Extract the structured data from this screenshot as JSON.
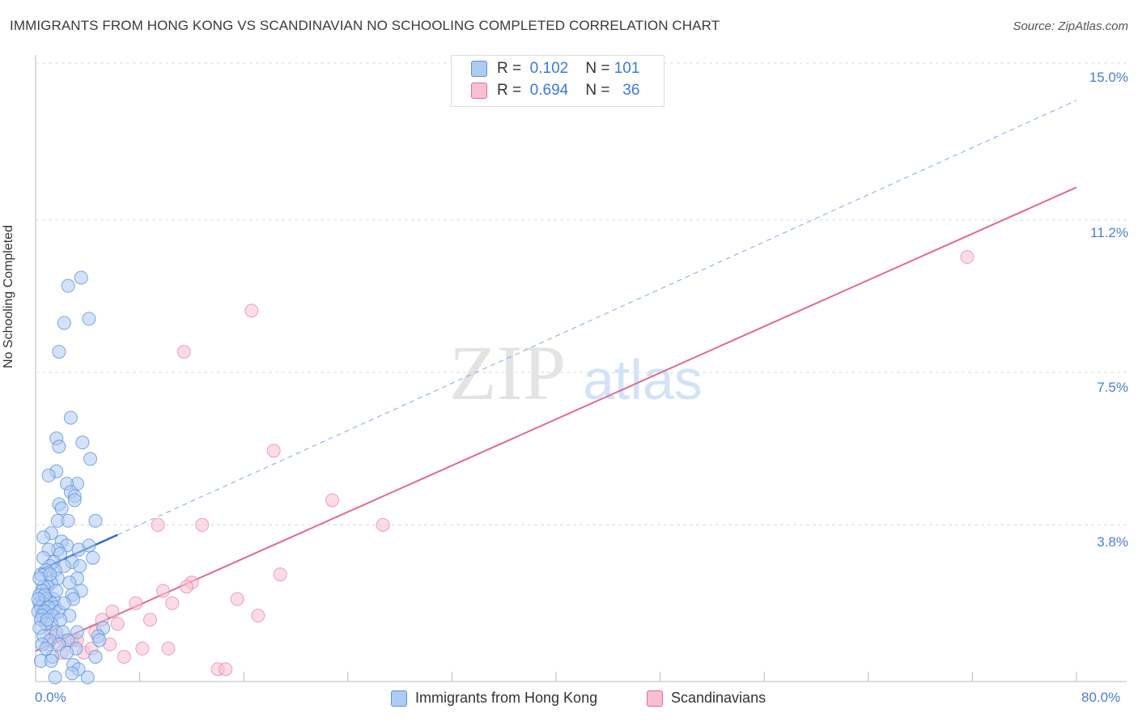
{
  "title": "IMMIGRANTS FROM HONG KONG VS SCANDINAVIAN NO SCHOOLING COMPLETED CORRELATION CHART",
  "source": "Source: ZipAtlas.com",
  "watermark": {
    "zip": "ZIP",
    "atlas": "atlas"
  },
  "legend": {
    "series1": {
      "r_label": "R =",
      "r_value": "0.102",
      "n_label": "N =",
      "n_value": "101"
    },
    "series2": {
      "r_label": "R =",
      "r_value": "0.694",
      "n_label": "N =",
      "n_value": "36"
    }
  },
  "bottom_legend": {
    "series1": "Immigrants from Hong Kong",
    "series2": "Scandinavians"
  },
  "colors": {
    "blue": "#5b93dc",
    "blue_fill": "#aecbf2",
    "pink": "#e26a92",
    "pink_fill": "#f7c0d2",
    "grid": "#dddddd",
    "tick": "#4a80d0"
  },
  "chart_data": {
    "type": "scatter",
    "title": "IMMIGRANTS FROM HONG KONG VS SCANDINAVIAN NO SCHOOLING COMPLETED CORRELATION CHART",
    "xlabel": "",
    "ylabel": "No Schooling Completed",
    "xlim": [
      0,
      80
    ],
    "ylim": [
      0,
      15.2
    ],
    "x_tick_labels": [
      "0.0%",
      "80.0%"
    ],
    "y_ticks": [
      3.8,
      7.5,
      11.2,
      15.0
    ],
    "y_tick_labels": [
      "3.8%",
      "7.5%",
      "11.2%",
      "15.0%"
    ],
    "grid": true,
    "legend_position": "top-center",
    "series": [
      {
        "name": "Immigrants from Hong Kong",
        "color": "#5b93dc",
        "R": 0.102,
        "N": 101,
        "trend_solid": [
          [
            0.2,
            2.69
          ],
          [
            6.3,
            3.56
          ]
        ],
        "trend_dashed": [
          [
            6.3,
            3.56
          ],
          [
            80.0,
            14.1
          ]
        ],
        "points": [
          [
            3.5,
            9.8
          ],
          [
            2.5,
            9.6
          ],
          [
            4.1,
            8.8
          ],
          [
            2.2,
            8.7
          ],
          [
            1.8,
            8.0
          ],
          [
            2.7,
            6.4
          ],
          [
            1.6,
            5.9
          ],
          [
            3.6,
            5.8
          ],
          [
            1.8,
            5.7
          ],
          [
            4.2,
            5.4
          ],
          [
            1.6,
            5.1
          ],
          [
            1.0,
            5.0
          ],
          [
            3.2,
            4.8
          ],
          [
            2.4,
            4.8
          ],
          [
            2.7,
            4.6
          ],
          [
            3.0,
            4.5
          ],
          [
            3.0,
            4.4
          ],
          [
            1.8,
            4.3
          ],
          [
            2.0,
            4.2
          ],
          [
            1.7,
            3.9
          ],
          [
            2.5,
            3.9
          ],
          [
            4.6,
            3.9
          ],
          [
            1.2,
            3.6
          ],
          [
            0.6,
            3.5
          ],
          [
            2.0,
            3.4
          ],
          [
            4.1,
            3.3
          ],
          [
            2.4,
            3.3
          ],
          [
            1.7,
            3.2
          ],
          [
            1.0,
            3.2
          ],
          [
            3.3,
            3.2
          ],
          [
            1.9,
            3.1
          ],
          [
            4.4,
            3.0
          ],
          [
            0.6,
            3.0
          ],
          [
            2.8,
            2.9
          ],
          [
            1.4,
            2.9
          ],
          [
            3.4,
            2.8
          ],
          [
            1.1,
            2.8
          ],
          [
            2.2,
            2.8
          ],
          [
            1.5,
            2.7
          ],
          [
            0.8,
            2.7
          ],
          [
            0.4,
            2.6
          ],
          [
            3.2,
            2.5
          ],
          [
            1.7,
            2.5
          ],
          [
            2.6,
            2.4
          ],
          [
            1.2,
            2.4
          ],
          [
            0.9,
            2.3
          ],
          [
            0.6,
            2.3
          ],
          [
            3.5,
            2.2
          ],
          [
            0.5,
            2.2
          ],
          [
            2.8,
            2.1
          ],
          [
            0.3,
            2.1
          ],
          [
            1.4,
            2.0
          ],
          [
            0.8,
            2.0
          ],
          [
            2.9,
            2.0
          ],
          [
            0.3,
            1.9
          ],
          [
            1.2,
            1.9
          ],
          [
            0.6,
            1.9
          ],
          [
            1.5,
            1.8
          ],
          [
            0.4,
            1.8
          ],
          [
            1.0,
            1.8
          ],
          [
            0.2,
            1.7
          ],
          [
            1.8,
            1.7
          ],
          [
            0.7,
            1.7
          ],
          [
            1.3,
            1.6
          ],
          [
            0.5,
            1.6
          ],
          [
            2.6,
            1.6
          ],
          [
            1.9,
            1.5
          ],
          [
            0.4,
            1.5
          ],
          [
            1.2,
            1.4
          ],
          [
            0.8,
            1.4
          ],
          [
            5.2,
            1.3
          ],
          [
            0.3,
            1.3
          ],
          [
            1.6,
            1.2
          ],
          [
            2.1,
            1.2
          ],
          [
            3.2,
            1.2
          ],
          [
            0.6,
            1.1
          ],
          [
            4.8,
            1.1
          ],
          [
            2.5,
            1.0
          ],
          [
            1.1,
            1.0
          ],
          [
            4.9,
            1.0
          ],
          [
            1.8,
            0.9
          ],
          [
            0.5,
            0.9
          ],
          [
            3.1,
            0.8
          ],
          [
            2.4,
            0.7
          ],
          [
            4.6,
            0.6
          ],
          [
            1.3,
            0.6
          ],
          [
            0.4,
            0.5
          ],
          [
            2.9,
            0.4
          ],
          [
            3.3,
            0.3
          ],
          [
            2.8,
            0.2
          ],
          [
            4.0,
            0.1
          ],
          [
            1.5,
            0.1
          ],
          [
            1.2,
            0.5
          ],
          [
            0.8,
            0.8
          ],
          [
            0.3,
            2.5
          ],
          [
            0.7,
            2.1
          ],
          [
            0.9,
            1.5
          ],
          [
            2.2,
            1.9
          ],
          [
            1.6,
            2.2
          ],
          [
            0.2,
            2.0
          ],
          [
            1.1,
            2.6
          ]
        ]
      },
      {
        "name": "Scandinavians",
        "color": "#e26a92",
        "R": 0.694,
        "N": 36,
        "trend": [
          [
            0.0,
            0.74
          ],
          [
            80.0,
            11.99
          ]
        ],
        "points": [
          [
            71.6,
            10.3
          ],
          [
            16.6,
            9.0
          ],
          [
            11.4,
            8.0
          ],
          [
            18.3,
            5.6
          ],
          [
            22.8,
            4.4
          ],
          [
            26.7,
            3.8
          ],
          [
            9.4,
            3.8
          ],
          [
            12.8,
            3.8
          ],
          [
            18.8,
            2.6
          ],
          [
            12.0,
            2.4
          ],
          [
            11.6,
            2.3
          ],
          [
            9.8,
            2.2
          ],
          [
            10.5,
            1.9
          ],
          [
            15.5,
            2.0
          ],
          [
            7.7,
            1.9
          ],
          [
            5.9,
            1.7
          ],
          [
            17.1,
            1.6
          ],
          [
            8.8,
            1.5
          ],
          [
            6.3,
            1.4
          ],
          [
            5.1,
            1.5
          ],
          [
            3.2,
            1.0
          ],
          [
            1.2,
            1.2
          ],
          [
            2.2,
            1.0
          ],
          [
            1.6,
            1.1
          ],
          [
            3.7,
            0.7
          ],
          [
            2.8,
            1.0
          ],
          [
            4.3,
            0.8
          ],
          [
            5.7,
            0.9
          ],
          [
            6.8,
            0.6
          ],
          [
            8.2,
            0.8
          ],
          [
            10.2,
            0.8
          ],
          [
            14.0,
            0.3
          ],
          [
            14.6,
            0.3
          ],
          [
            1.0,
            0.9
          ],
          [
            2.0,
            0.7
          ],
          [
            4.6,
            1.2
          ]
        ]
      }
    ]
  }
}
